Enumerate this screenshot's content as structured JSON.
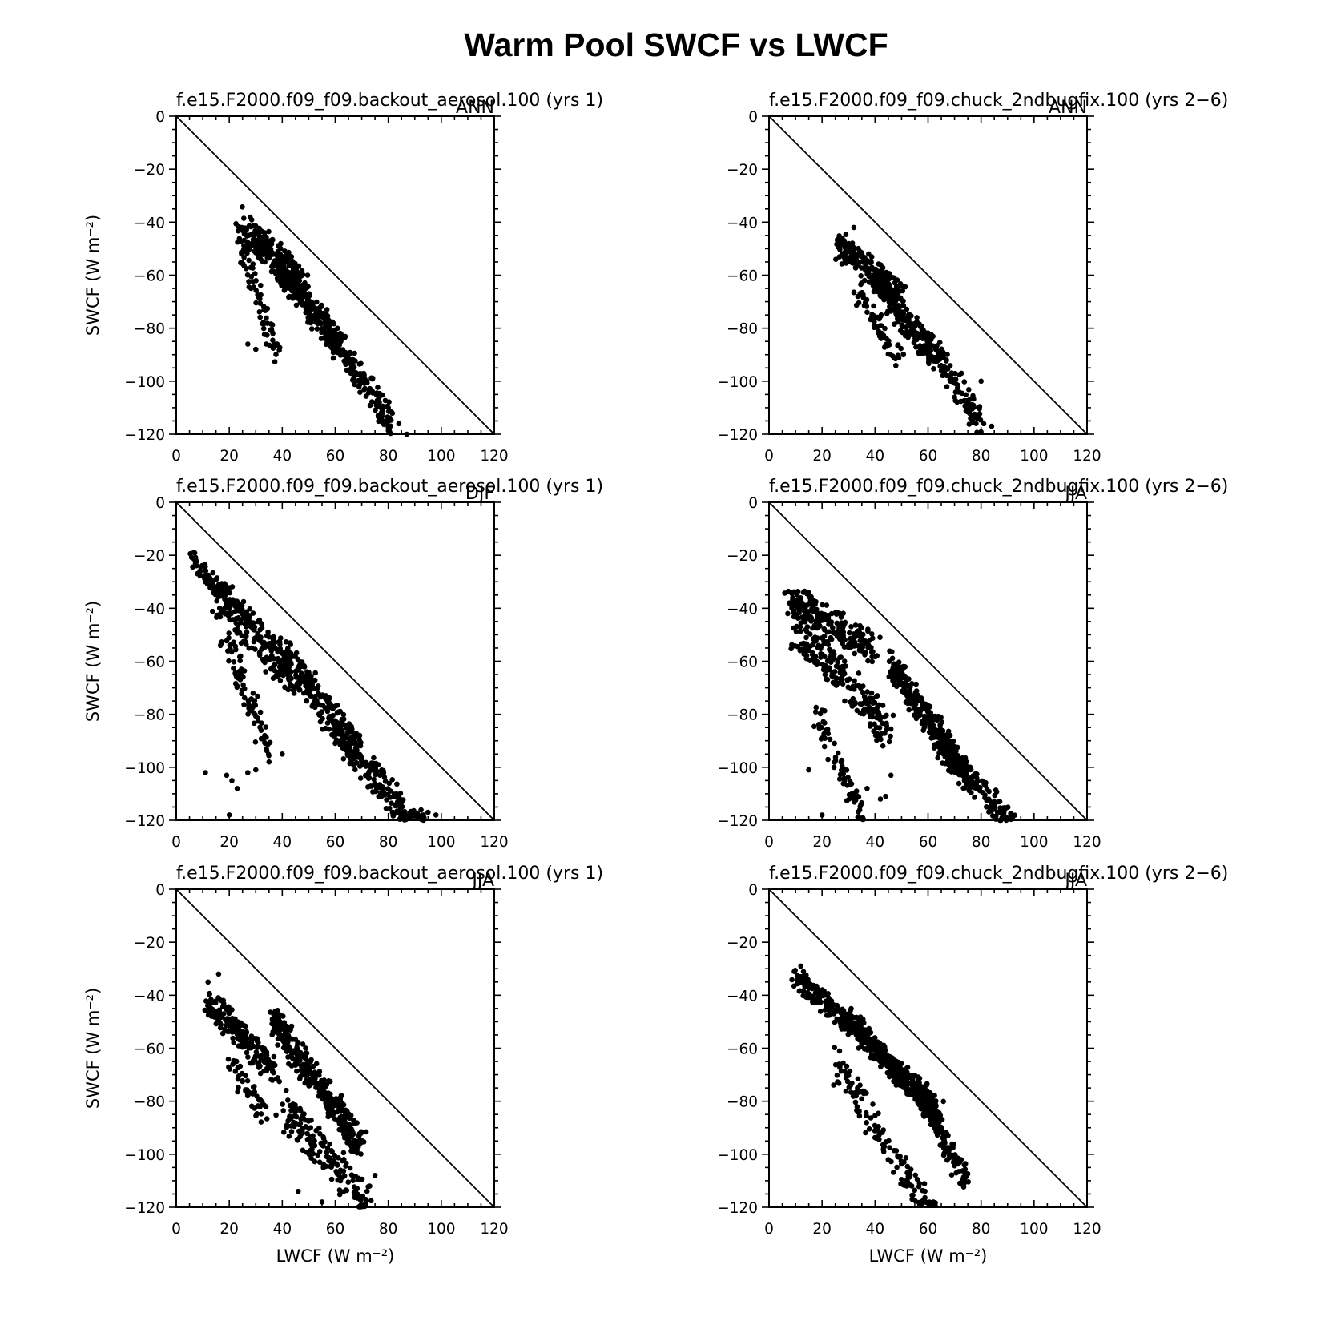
{
  "figure": {
    "title": "Warm Pool SWCF vs LWCF"
  },
  "panel_labels": {
    "left_subtitle": "f.e15.F2000.f09_f09.backout_aerosol.100 (yrs 1)",
    "right_subtitle": "f.e15.F2000.f09_f09.chuck_2ndbugfix.100 (yrs 2−6)",
    "ylabel": "SWCF (W m⁻²)",
    "xlabel": "LWCF (W m⁻²)"
  },
  "chart_data": [
    {
      "type": "scatter",
      "subtitle": "f.e15.F2000.f09_f09.backout_aerosol.100 (yrs 1)",
      "season": "ANN",
      "xlim": [
        0,
        120
      ],
      "ylim": [
        -120,
        0
      ],
      "xticks": [
        0,
        20,
        40,
        60,
        80,
        100,
        120
      ],
      "yticks": [
        0,
        -20,
        -40,
        -60,
        -80,
        -100,
        -120
      ],
      "ylabel": "SWCF (W m⁻²)",
      "xlabel": "",
      "reference_line": "y = -x",
      "clusters": [
        {
          "x": [
            24,
            48
          ],
          "y": [
            -34,
            -58
          ],
          "spread": [
            0,
            12
          ],
          "n": 220
        },
        {
          "x": [
            38,
            62
          ],
          "y": [
            -50,
            -82
          ],
          "spread": [
            0,
            10
          ],
          "n": 230
        },
        {
          "x": [
            55,
            82
          ],
          "y": [
            -72,
            -112
          ],
          "spread": [
            0,
            10
          ],
          "n": 170
        },
        {
          "x": [
            25,
            38
          ],
          "y": [
            -45,
            -88
          ],
          "spread": [
            0,
            6
          ],
          "n": 70
        }
      ],
      "points": [
        [
          87,
          -120
        ],
        [
          84,
          -116
        ],
        [
          80,
          -110
        ],
        [
          27,
          -86
        ],
        [
          30,
          -88
        ],
        [
          34,
          -86
        ],
        [
          37,
          -86
        ]
      ]
    },
    {
      "type": "scatter",
      "subtitle": "f.e15.F2000.f09_f09.chuck_2ndbugfix.100 (yrs 2−6)",
      "season": "ANN",
      "xlim": [
        0,
        120
      ],
      "ylim": [
        -120,
        0
      ],
      "xticks": [
        0,
        20,
        40,
        60,
        80,
        100,
        120
      ],
      "yticks": [
        0,
        -20,
        -40,
        -60,
        -80,
        -100,
        -120
      ],
      "ylabel": "",
      "xlabel": "",
      "reference_line": "y = -x",
      "clusters": [
        {
          "x": [
            26,
            50
          ],
          "y": [
            -44,
            -64
          ],
          "spread": [
            0,
            8
          ],
          "n": 220
        },
        {
          "x": [
            40,
            62
          ],
          "y": [
            -58,
            -86
          ],
          "spread": [
            0,
            9
          ],
          "n": 200
        },
        {
          "x": [
            58,
            80
          ],
          "y": [
            -78,
            -112
          ],
          "spread": [
            0,
            8
          ],
          "n": 120
        },
        {
          "x": [
            33,
            50
          ],
          "y": [
            -62,
            -90
          ],
          "spread": [
            0,
            6
          ],
          "n": 70
        }
      ],
      "points": [
        [
          32,
          -42
        ],
        [
          84,
          -117
        ],
        [
          81,
          -116
        ],
        [
          70,
          -106
        ],
        [
          80,
          -100
        ]
      ]
    },
    {
      "type": "scatter",
      "subtitle": "f.e15.F2000.f09_f09.backout_aerosol.100 (yrs 1)",
      "season": "DJF",
      "xlim": [
        0,
        120
      ],
      "ylim": [
        -120,
        0
      ],
      "xticks": [
        0,
        20,
        40,
        60,
        80,
        100,
        120
      ],
      "yticks": [
        0,
        -20,
        -40,
        -60,
        -80,
        -100,
        -120
      ],
      "ylabel": "SWCF (W m⁻²)",
      "xlabel": "",
      "reference_line": "y = -x",
      "clusters": [
        {
          "x": [
            5,
            18
          ],
          "y": [
            -18,
            -34
          ],
          "spread": [
            0,
            3
          ],
          "n": 60
        },
        {
          "x": [
            15,
            45
          ],
          "y": [
            -28,
            -60
          ],
          "spread": [
            0,
            14
          ],
          "n": 220
        },
        {
          "x": [
            40,
            70
          ],
          "y": [
            -50,
            -90
          ],
          "spread": [
            0,
            12
          ],
          "n": 230
        },
        {
          "x": [
            60,
            92
          ],
          "y": [
            -80,
            -118
          ],
          "spread": [
            0,
            12
          ],
          "n": 180
        },
        {
          "x": [
            18,
            35
          ],
          "y": [
            -45,
            -90
          ],
          "spread": [
            0,
            10
          ],
          "n": 80
        }
      ],
      "points": [
        [
          11,
          -102
        ],
        [
          19,
          -103
        ],
        [
          21,
          -105
        ],
        [
          23,
          -108
        ],
        [
          27,
          -102
        ],
        [
          30,
          -101
        ],
        [
          35,
          -98
        ],
        [
          40,
          -95
        ],
        [
          20,
          -118
        ],
        [
          98,
          -118
        ],
        [
          95,
          -117
        ]
      ]
    },
    {
      "type": "scatter",
      "subtitle": "f.e15.F2000.f09_f09.chuck_2ndbugfix.100 (yrs 2−6)",
      "season": "JJA",
      "xlim": [
        0,
        120
      ],
      "ylim": [
        -120,
        0
      ],
      "xticks": [
        0,
        20,
        40,
        60,
        80,
        100,
        120
      ],
      "yticks": [
        0,
        -20,
        -40,
        -60,
        -80,
        -100,
        -120
      ],
      "ylabel": "",
      "xlabel": "",
      "reference_line": "y = -x",
      "clusters": [
        {
          "x": [
            7,
            40
          ],
          "y": [
            -31,
            -50
          ],
          "spread": [
            0,
            10
          ],
          "n": 200
        },
        {
          "x": [
            10,
            45
          ],
          "y": [
            -40,
            -80
          ],
          "spread": [
            0,
            14
          ],
          "n": 230
        },
        {
          "x": [
            45,
            75
          ],
          "y": [
            -55,
            -100
          ],
          "spread": [
            0,
            9
          ],
          "n": 300
        },
        {
          "x": [
            62,
            92
          ],
          "y": [
            -85,
            -118
          ],
          "spread": [
            0,
            8
          ],
          "n": 170
        },
        {
          "x": [
            18,
            35
          ],
          "y": [
            -75,
            -115
          ],
          "spread": [
            0,
            8
          ],
          "n": 70
        }
      ],
      "points": [
        [
          15,
          -101
        ],
        [
          20,
          -118
        ],
        [
          37,
          -108
        ],
        [
          44,
          -111
        ],
        [
          46,
          -103
        ],
        [
          42,
          -112
        ],
        [
          33,
          -109
        ]
      ]
    },
    {
      "type": "scatter",
      "subtitle": "f.e15.F2000.f09_f09.backout_aerosol.100 (yrs 1)",
      "season": "JJA",
      "xlim": [
        0,
        120
      ],
      "ylim": [
        -120,
        0
      ],
      "xticks": [
        0,
        20,
        40,
        60,
        80,
        100,
        120
      ],
      "yticks": [
        0,
        -20,
        -40,
        -60,
        -80,
        -100,
        -120
      ],
      "ylabel": "SWCF (W m⁻²)",
      "xlabel": "LWCF (W m⁻²)",
      "reference_line": "y = -x",
      "clusters": [
        {
          "x": [
            12,
            38
          ],
          "y": [
            -38,
            -65
          ],
          "spread": [
            0,
            9
          ],
          "n": 200
        },
        {
          "x": [
            36,
            70
          ],
          "y": [
            -44,
            -92
          ],
          "spread": [
            0,
            10
          ],
          "n": 360
        },
        {
          "x": [
            40,
            72
          ],
          "y": [
            -75,
            -112
          ],
          "spread": [
            0,
            14
          ],
          "n": 160
        },
        {
          "x": [
            20,
            36
          ],
          "y": [
            -62,
            -85
          ],
          "spread": [
            0,
            8
          ],
          "n": 50
        }
      ],
      "points": [
        [
          12,
          -35
        ],
        [
          16,
          -32
        ],
        [
          13,
          -47
        ],
        [
          46,
          -114
        ],
        [
          55,
          -118
        ],
        [
          73,
          -112
        ],
        [
          75,
          -108
        ],
        [
          72,
          -114
        ]
      ]
    },
    {
      "type": "scatter",
      "subtitle": "f.e15.F2000.f09_f09.chuck_2ndbugfix.100 (yrs 2−6)",
      "season": "JJA",
      "xlim": [
        0,
        120
      ],
      "ylim": [
        -120,
        0
      ],
      "xticks": [
        0,
        20,
        40,
        60,
        80,
        100,
        120
      ],
      "yticks": [
        0,
        -20,
        -40,
        -60,
        -80,
        -100,
        -120
      ],
      "ylabel": "",
      "xlabel": "LWCF (W m⁻²)",
      "reference_line": "y = -x",
      "clusters": [
        {
          "x": [
            10,
            35
          ],
          "y": [
            -30,
            -52
          ],
          "spread": [
            0,
            6
          ],
          "n": 180
        },
        {
          "x": [
            30,
            65
          ],
          "y": [
            -45,
            -82
          ],
          "spread": [
            0,
            8
          ],
          "n": 380
        },
        {
          "x": [
            55,
            75
          ],
          "y": [
            -70,
            -108
          ],
          "spread": [
            0,
            7
          ],
          "n": 150
        },
        {
          "x": [
            24,
            62
          ],
          "y": [
            -58,
            -118
          ],
          "spread": [
            0,
            12
          ],
          "n": 130
        }
      ],
      "points": [
        [
          12,
          -29
        ],
        [
          18,
          -37
        ],
        [
          62,
          -118
        ],
        [
          54,
          -117
        ],
        [
          52,
          -112
        ],
        [
          74,
          -107
        ],
        [
          72,
          -103
        ]
      ]
    }
  ]
}
